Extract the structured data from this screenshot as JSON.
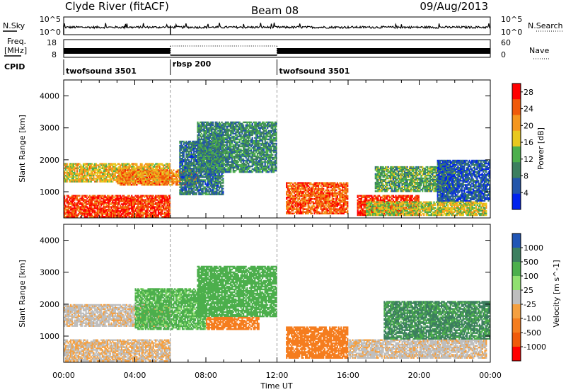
{
  "header": {
    "station": "Clyde River (fitACF)",
    "beam": "Beam 08",
    "date": "09/Aug/2013"
  },
  "top_panel": {
    "nsky_label": "N.Sky",
    "nsearch_label": "N.Search",
    "count_ticks_left": [
      "10^5",
      "10^0"
    ],
    "count_ticks_right": [
      "10^5",
      "10^0"
    ],
    "freq_label": "Freq.",
    "freq_unit": "[MHz]",
    "freq_ticks": [
      "18",
      "8"
    ],
    "nave_label": "Nave",
    "nave_ticks": [
      "60",
      "0"
    ],
    "cpid_label": "CPID",
    "cpid_segments": [
      {
        "name": "twofsound 3501",
        "start_hour": 0,
        "end_hour": 6
      },
      {
        "name": "rbsp 200",
        "start_hour": 6,
        "end_hour": 12
      },
      {
        "name": "twofsound 3501",
        "start_hour": 12,
        "end_hour": 24
      }
    ]
  },
  "axes": {
    "xlabel": "Time UT",
    "ylabel": "Slant Range [km]",
    "x_ticks": [
      "00:00",
      "04:00",
      "08:00",
      "12:00",
      "16:00",
      "20:00",
      "00:00"
    ],
    "y_ticks": [
      "1000",
      "2000",
      "3000",
      "4000"
    ]
  },
  "colors": {
    "ground_scatter": "#bebebe"
  },
  "chart_data": [
    {
      "type": "heatmap",
      "name": "power",
      "xlabel": "Time UT",
      "ylabel": "Slant Range [km]",
      "xlim_hours": [
        0,
        24
      ],
      "ylim_km": [
        180,
        4500
      ],
      "colorbar_label": "Power [dB]",
      "colorbar_ticks": [
        "28",
        "24",
        "20",
        "16",
        "12",
        "8",
        "4"
      ],
      "colorbar_range": [
        0,
        30
      ],
      "colorbar_colors": [
        "#0022ee",
        "#2255aa",
        "#3c7f5f",
        "#4caf4c",
        "#e8c81e",
        "#f5961e",
        "#f05a0a",
        "#ff0000"
      ],
      "regions": [
        {
          "t": [
            0,
            6
          ],
          "r": [
            200,
            900
          ],
          "level": 26
        },
        {
          "t": [
            0,
            6
          ],
          "r": [
            1300,
            1900
          ],
          "level": 18
        },
        {
          "t": [
            3,
            7.5
          ],
          "r": [
            1200,
            1700
          ],
          "level": 22
        },
        {
          "t": [
            6.5,
            9
          ],
          "r": [
            900,
            2600
          ],
          "level": 8
        },
        {
          "t": [
            7.5,
            12
          ],
          "r": [
            1600,
            3200
          ],
          "level": 10
        },
        {
          "t": [
            12.5,
            16
          ],
          "r": [
            300,
            1300
          ],
          "level": 24
        },
        {
          "t": [
            16.5,
            20
          ],
          "r": [
            250,
            900
          ],
          "level": 27
        },
        {
          "t": [
            17,
            23.8
          ],
          "r": [
            250,
            700
          ],
          "level": 16
        },
        {
          "t": [
            17.5,
            22
          ],
          "r": [
            1000,
            1800
          ],
          "level": 12
        },
        {
          "t": [
            21,
            24
          ],
          "r": [
            700,
            2000
          ],
          "level": 6
        }
      ]
    },
    {
      "type": "heatmap",
      "name": "velocity",
      "xlabel": "Time UT",
      "ylabel": "Slant Range [km]",
      "xlim_hours": [
        0,
        24
      ],
      "ylim_km": [
        180,
        4500
      ],
      "colorbar_label": "Velocity [m s^-1]",
      "colorbar_ticks": [
        "1000",
        "500",
        "100",
        "25",
        "-25",
        "-100",
        "-500",
        "-1000"
      ],
      "colorbar_colors": [
        "#2055b5",
        "#3c7f5f",
        "#4caf4c",
        "#90e070",
        "#bebebe",
        "#f5a040",
        "#f57d1e",
        "#f05a0a",
        "#ff0000"
      ],
      "regions": [
        {
          "t": [
            0,
            6
          ],
          "r": [
            200,
            900
          ],
          "v": -25
        },
        {
          "t": [
            0,
            6
          ],
          "r": [
            1300,
            2000
          ],
          "v": -10
        },
        {
          "t": [
            4,
            8
          ],
          "r": [
            1200,
            2500
          ],
          "v": 150
        },
        {
          "t": [
            7.5,
            12
          ],
          "r": [
            1600,
            3200
          ],
          "v": 200
        },
        {
          "t": [
            8,
            11
          ],
          "r": [
            1200,
            1600
          ],
          "v": -200
        },
        {
          "t": [
            12.5,
            16
          ],
          "r": [
            300,
            1300
          ],
          "v": -300
        },
        {
          "t": [
            16,
            23.8
          ],
          "r": [
            300,
            900
          ],
          "v": -10
        },
        {
          "t": [
            18,
            24
          ],
          "r": [
            900,
            2100
          ],
          "v": 600
        }
      ]
    }
  ]
}
